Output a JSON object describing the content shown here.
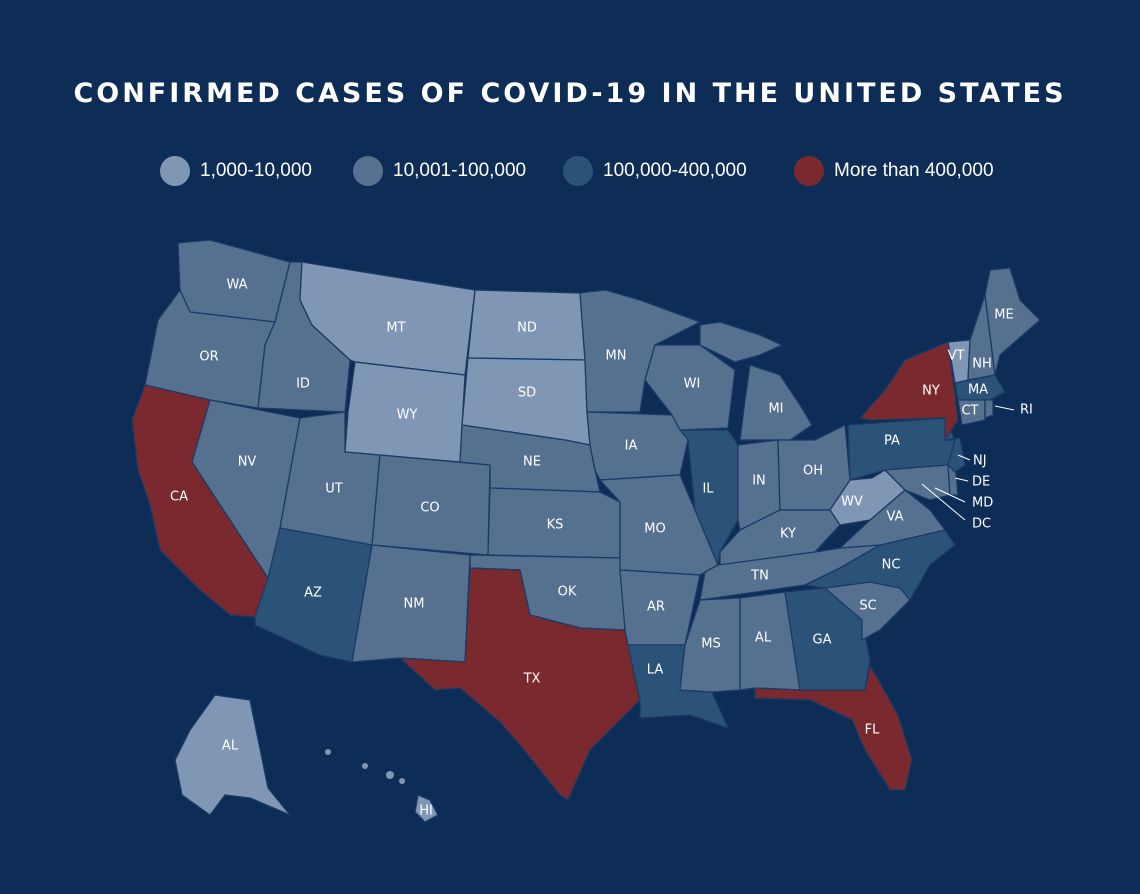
{
  "title": "CONFIRMED CASES OF COVID-19 IN THE UNITED STATES",
  "legend": [
    {
      "label": "1,000-10,000",
      "color": "#7f97b4"
    },
    {
      "label": "10,001-100,000",
      "color": "#56718f"
    },
    {
      "label": "100,000-400,000",
      "color": "#2b5377"
    },
    {
      "label": "More than 400,000",
      "color": "#7a2a2e"
    }
  ],
  "states": {
    "WA": "WA",
    "OR": "OR",
    "CA": "CA",
    "ID": "ID",
    "NV": "NV",
    "MT": "MT",
    "WY": "WY",
    "UT": "UT",
    "AZ": "AZ",
    "CO": "CO",
    "NM": "NM",
    "ND": "ND",
    "SD": "SD",
    "NE": "NE",
    "KS": "KS",
    "OK": "OK",
    "TX": "TX",
    "MN": "MN",
    "IA": "IA",
    "MO": "MO",
    "AR": "AR",
    "LA": "LA",
    "WI": "WI",
    "IL": "IL",
    "MI": "MI",
    "IN": "IN",
    "OH": "OH",
    "KY": "KY",
    "TN": "TN",
    "MS": "MS",
    "AL": "AL",
    "GA": "GA",
    "FL": "FL",
    "SC": "SC",
    "NC": "NC",
    "VA": "VA",
    "WV": "WV",
    "PA": "PA",
    "NY": "NY",
    "VT": "VT",
    "NH": "NH",
    "ME": "ME",
    "MA": "MA",
    "CT": "CT",
    "RI": "RI",
    "NJ": "NJ",
    "DE": "DE",
    "MD": "MD",
    "DC": "DC",
    "AK": "AL",
    "HI": "HI"
  }
}
